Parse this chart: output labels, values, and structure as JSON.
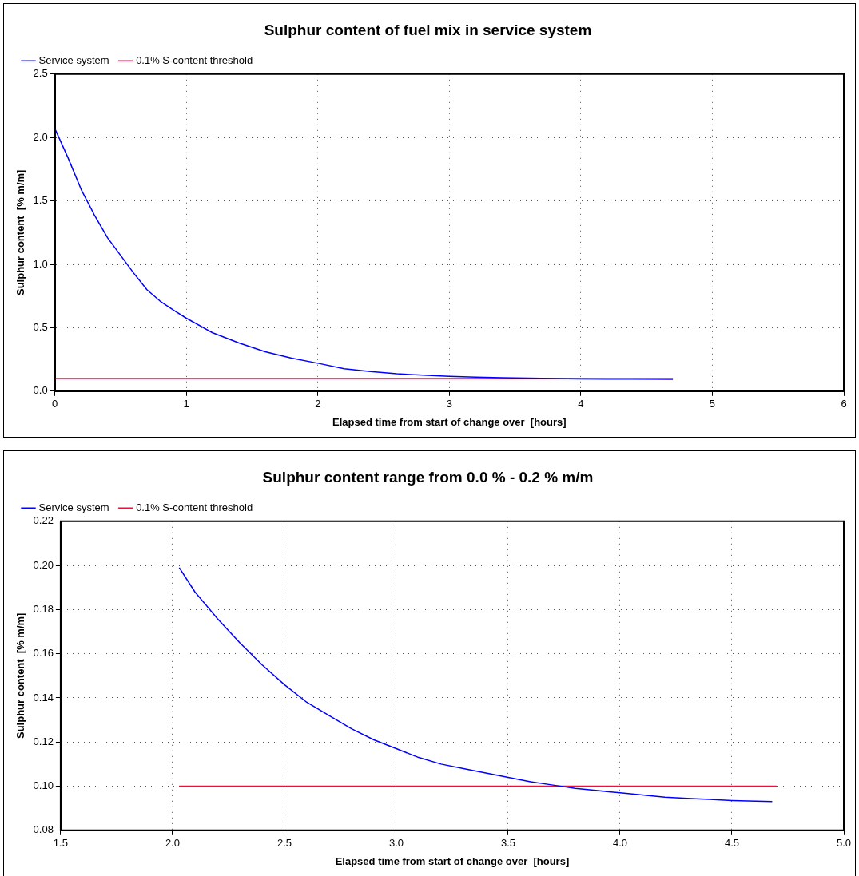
{
  "chart_data": [
    {
      "type": "line",
      "title": "Sulphur content of fuel mix in service system",
      "xlabel": "Elapsed time from start of change over  [hours]",
      "ylabel": "Sulphur content  [% m/m]",
      "xlim": [
        0,
        6
      ],
      "xticks": [
        0,
        1,
        2,
        3,
        4,
        5,
        6
      ],
      "ylim": [
        0,
        2.5
      ],
      "yticks": [
        {
          "value": 0,
          "label": "0.0"
        },
        0.5,
        {
          "value": 1,
          "label": "1.0"
        },
        1.5,
        {
          "value": 2,
          "label": "2.0"
        },
        2.5
      ],
      "grid": true,
      "legend": "top left",
      "marker": "none",
      "line_style": "solid",
      "series": [
        {
          "name": "Service system",
          "color": "#0000ff",
          "x": [
            0,
            0.1,
            0.2,
            0.3,
            0.4,
            0.5,
            0.6,
            0.7,
            0.8,
            0.9,
            1.0,
            1.2,
            1.4,
            1.6,
            1.8,
            2.0,
            2.2,
            2.4,
            2.6,
            2.8,
            3.0,
            3.2,
            3.4,
            3.6,
            3.8,
            4.0,
            4.2,
            4.4,
            4.7
          ],
          "values": [
            2.07,
            1.84,
            1.59,
            1.39,
            1.21,
            1.07,
            0.93,
            0.8,
            0.71,
            0.64,
            0.575,
            0.46,
            0.38,
            0.31,
            0.26,
            0.22,
            0.176,
            0.155,
            0.137,
            0.126,
            0.117,
            0.11,
            0.106,
            0.102,
            0.099,
            0.097,
            0.095,
            0.094,
            0.093
          ]
        },
        {
          "name": "0.1% S-content threshold",
          "color": "#e8103c",
          "x": [
            0,
            4.7
          ],
          "values": [
            0.1,
            0.1
          ]
        }
      ]
    },
    {
      "type": "line",
      "title": "Sulphur content range from 0.0 % - 0.2 % m/m",
      "xlabel": "Elapsed time from start of change over  [hours]",
      "ylabel": "Sulphur content  [% m/m]",
      "xlim": [
        1.5,
        5
      ],
      "xticks": [
        1.5,
        {
          "value": 2,
          "label": "2.0"
        },
        2.5,
        {
          "value": 3,
          "label": "3.0"
        },
        3.5,
        {
          "value": 4,
          "label": "4.0"
        },
        4.5,
        {
          "value": 5,
          "label": "5.0"
        }
      ],
      "ylim": [
        0.08,
        0.22
      ],
      "yticks": [
        0.08,
        {
          "value": 0.1,
          "label": "0.10"
        },
        0.12,
        0.14,
        0.16,
        0.18,
        {
          "value": 0.2,
          "label": "0.20"
        },
        0.22
      ],
      "grid": true,
      "legend": "top left",
      "marker": "none",
      "line_style": "solid",
      "series": [
        {
          "name": "Service system",
          "color": "#0000ff",
          "x": [
            2.03,
            2.1,
            2.2,
            2.3,
            2.4,
            2.5,
            2.6,
            2.7,
            2.8,
            2.9,
            3.0,
            3.1,
            3.2,
            3.3,
            3.4,
            3.5,
            3.6,
            3.7,
            3.8,
            3.9,
            4.0,
            4.1,
            4.2,
            4.3,
            4.4,
            4.5,
            4.68
          ],
          "values": [
            0.199,
            0.188,
            0.176,
            0.165,
            0.155,
            0.146,
            0.138,
            0.132,
            0.126,
            0.121,
            0.117,
            0.113,
            0.11,
            0.108,
            0.106,
            0.104,
            0.102,
            0.1005,
            0.099,
            0.098,
            0.097,
            0.096,
            0.095,
            0.0945,
            0.094,
            0.0935,
            0.093
          ]
        },
        {
          "name": "0.1% S-content threshold",
          "color": "#e8103c",
          "x": [
            2.03,
            4.7
          ],
          "values": [
            0.1,
            0.1
          ]
        }
      ]
    }
  ]
}
